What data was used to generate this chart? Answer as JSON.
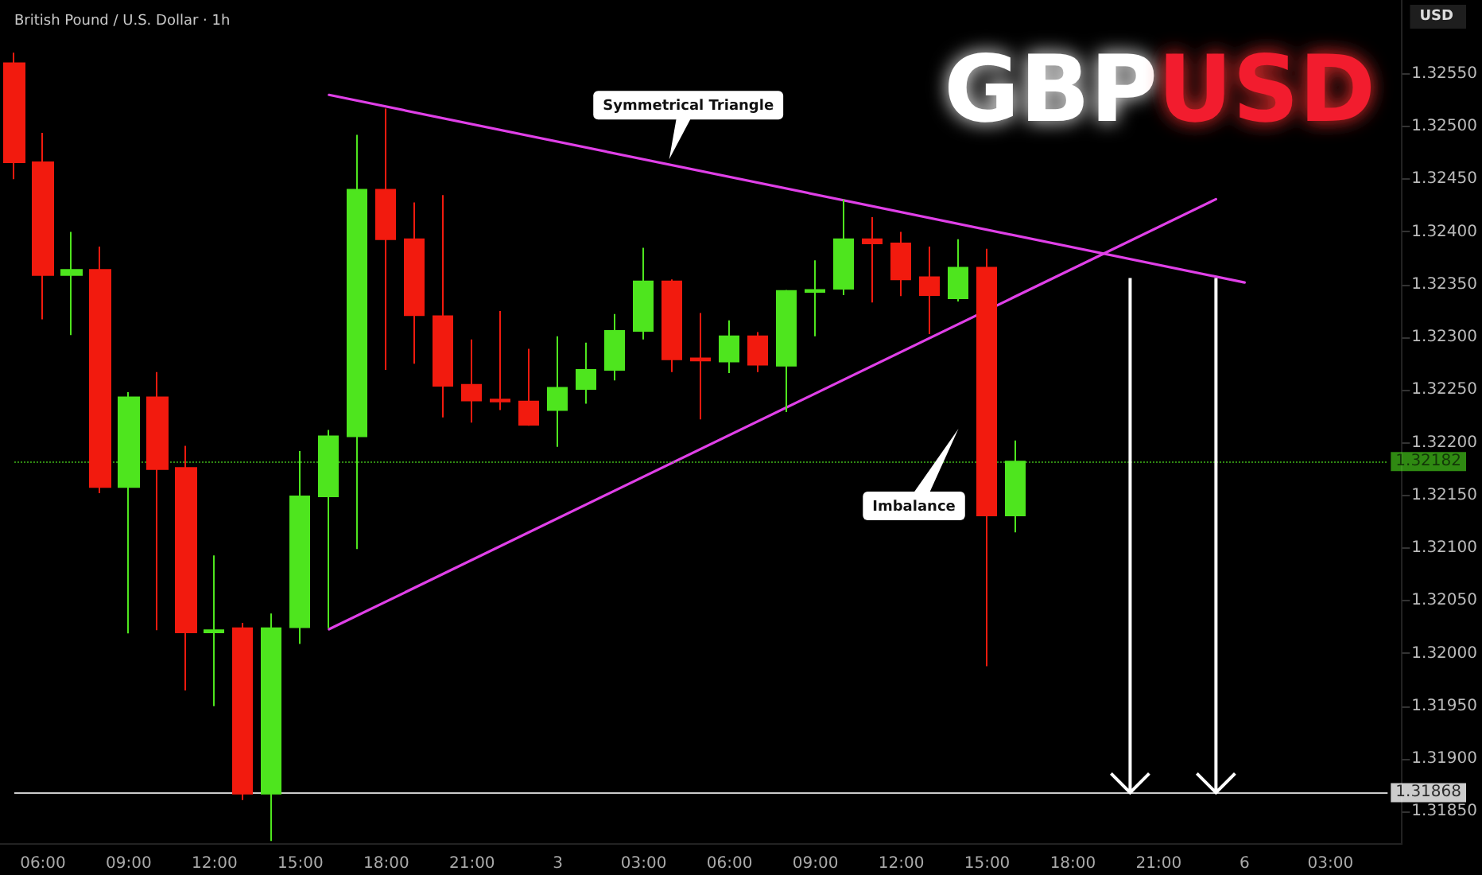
{
  "chart_data": {
    "type": "candlestick",
    "title": "GBPUSD",
    "subtitle": "British Pound / U.S. Dollar · 1h",
    "ylabel": "USD",
    "categories": [
      null,
      "06:00",
      null,
      null,
      "09:00",
      null,
      null,
      "12:00",
      null,
      null,
      "15:00",
      null,
      null,
      "18:00",
      null,
      null,
      "21:00",
      null,
      null,
      "3",
      null,
      null,
      "03:00",
      null,
      null,
      "06:00",
      null,
      null,
      "09:00",
      null,
      null,
      "12:00",
      null,
      null,
      "15:00",
      null,
      null,
      "18:00",
      null,
      null,
      "21:00",
      null,
      null,
      "6",
      null,
      null,
      "03:00",
      null,
      null
    ],
    "ohlc": [
      [
        1.3256,
        1.3257,
        1.3245,
        1.32466
      ],
      [
        1.32466,
        1.32494,
        1.32317,
        1.32359
      ],
      [
        1.32359,
        1.324,
        1.32302,
        1.32364
      ],
      [
        1.32364,
        1.32386,
        1.32152,
        1.32158
      ],
      [
        1.32158,
        1.32248,
        1.32019,
        1.32243
      ],
      [
        1.32243,
        1.32267,
        1.32022,
        1.32175
      ],
      [
        1.32176,
        1.32197,
        1.31965,
        1.3202
      ],
      [
        1.3202,
        1.32093,
        1.3195,
        1.32022
      ],
      [
        1.32024,
        1.32029,
        1.31861,
        1.31867
      ],
      [
        1.31867,
        1.32038,
        1.31822,
        1.32024
      ],
      [
        1.32025,
        1.32192,
        1.32009,
        1.32149
      ],
      [
        1.32149,
        1.32212,
        1.32024,
        1.32206
      ],
      [
        1.32206,
        1.32492,
        1.32099,
        1.3244
      ],
      [
        1.3244,
        1.32517,
        1.32269,
        1.32393
      ],
      [
        1.32393,
        1.32428,
        1.32275,
        1.32321
      ],
      [
        1.3232,
        1.32435,
        1.32224,
        1.32254
      ],
      [
        1.32255,
        1.32298,
        1.32219,
        1.3224
      ],
      [
        1.32241,
        1.32325,
        1.32231,
        1.32239
      ],
      [
        1.32239,
        1.32289,
        1.32216,
        1.32217
      ],
      [
        1.32231,
        1.32301,
        1.32196,
        1.32252
      ],
      [
        1.32251,
        1.32295,
        1.32237,
        1.32269
      ],
      [
        1.32269,
        1.32322,
        1.32259,
        1.32306
      ],
      [
        1.32306,
        1.32385,
        1.32298,
        1.32353
      ],
      [
        1.32353,
        1.32355,
        1.32267,
        1.32279
      ],
      [
        1.3228,
        1.32323,
        1.32222,
        1.32278
      ],
      [
        1.32277,
        1.32316,
        1.32266,
        1.32301
      ],
      [
        1.32301,
        1.32305,
        1.32267,
        1.32274
      ],
      [
        1.32273,
        1.32345,
        1.32229,
        1.32344
      ],
      [
        1.32343,
        1.32373,
        1.32301,
        1.32345
      ],
      [
        1.32346,
        1.32431,
        1.3234,
        1.32393
      ],
      [
        1.32393,
        1.32414,
        1.32333,
        1.32389
      ],
      [
        1.32389,
        1.324,
        1.32339,
        1.32355
      ],
      [
        1.32357,
        1.32386,
        1.32303,
        1.3234
      ],
      [
        1.32337,
        1.32393,
        1.32334,
        1.32366
      ],
      [
        1.32366,
        1.32384,
        1.31988,
        1.32131
      ],
      [
        1.32131,
        1.32202,
        1.32115,
        1.32182
      ],
      null,
      null,
      null,
      null,
      null,
      null,
      null,
      null,
      null,
      null,
      null,
      null,
      null
    ],
    "colors": [
      "#f21a0e",
      "#f21a0e",
      "#4ee51e",
      "#f21a0e",
      "#4ee51e",
      "#f21a0e",
      "#f21a0e",
      "#4ee51e",
      "#f21a0e",
      "#4ee51e",
      "#4ee51e",
      "#4ee51e",
      "#4ee51e",
      "#f21a0e",
      "#f21a0e",
      "#f21a0e",
      "#f21a0e",
      "#f21a0e",
      "#f21a0e",
      "#4ee51e",
      "#4ee51e",
      "#4ee51e",
      "#4ee51e",
      "#f21a0e",
      "#f21a0e",
      "#4ee51e",
      "#f21a0e",
      "#4ee51e",
      "#4ee51e",
      "#4ee51e",
      "#f21a0e",
      "#f21a0e",
      "#f21a0e",
      "#4ee51e",
      "#f21a0e",
      "#4ee51e",
      null,
      null,
      null,
      null,
      null,
      null,
      null,
      null,
      null,
      null,
      null,
      null,
      null
    ],
    "series": [
      {
        "type": "line",
        "color": "#e040e8",
        "values": [
          null,
          null,
          null,
          null,
          null,
          null,
          null,
          null,
          null,
          null,
          null,
          1.3253,
          null,
          null,
          null,
          null,
          null,
          null,
          null,
          null,
          null,
          null,
          null,
          null,
          null,
          null,
          null,
          null,
          null,
          null,
          null,
          null,
          null,
          null,
          null,
          null,
          null,
          null,
          null,
          null,
          null,
          null,
          null,
          1.32352,
          null,
          null,
          null,
          null,
          null
        ]
      },
      {
        "type": "line",
        "color": "#e040e8",
        "values": [
          null,
          null,
          null,
          null,
          null,
          null,
          null,
          null,
          null,
          null,
          null,
          1.32023,
          null,
          null,
          null,
          null,
          null,
          null,
          null,
          null,
          null,
          null,
          null,
          null,
          null,
          null,
          null,
          null,
          null,
          null,
          null,
          null,
          null,
          null,
          null,
          null,
          null,
          null,
          null,
          null,
          null,
          null,
          1.32431,
          null,
          null,
          null,
          null,
          null,
          null
        ]
      }
    ],
    "ylim": [
      1.3182,
      1.3262
    ],
    "yticks": [
      {
        "value": 1.3185,
        "label": "1.31850"
      },
      {
        "value": 1.319,
        "label": "1.31900"
      },
      {
        "value": 1.3195,
        "label": "1.31950"
      },
      {
        "value": 1.32,
        "label": "1.32000"
      },
      {
        "value": 1.3205,
        "label": "1.32050"
      },
      {
        "value": 1.321,
        "label": "1.32100"
      },
      {
        "value": 1.3215,
        "label": "1.32150"
      },
      {
        "value": 1.322,
        "label": "1.32200"
      },
      {
        "value": 1.3225,
        "label": "1.32250"
      },
      {
        "value": 1.323,
        "label": "1.32300"
      },
      {
        "value": 1.3235,
        "label": "1.32350"
      },
      {
        "value": 1.324,
        "label": "1.32400"
      },
      {
        "value": 1.3245,
        "label": "1.32450"
      },
      {
        "value": 1.325,
        "label": "1.32500"
      },
      {
        "value": 1.3255,
        "label": "1.32550"
      }
    ],
    "ref_lines": [
      {
        "axis": "y",
        "value": 1.31868,
        "label": "1.31868",
        "color": "#ffffff"
      },
      {
        "axis": "y",
        "value": 1.32182,
        "label": "1.32182",
        "color": "#4ee51e"
      }
    ],
    "annotations": [
      "Symmetrical Triangle",
      "Imbalance"
    ],
    "grid": false
  }
}
